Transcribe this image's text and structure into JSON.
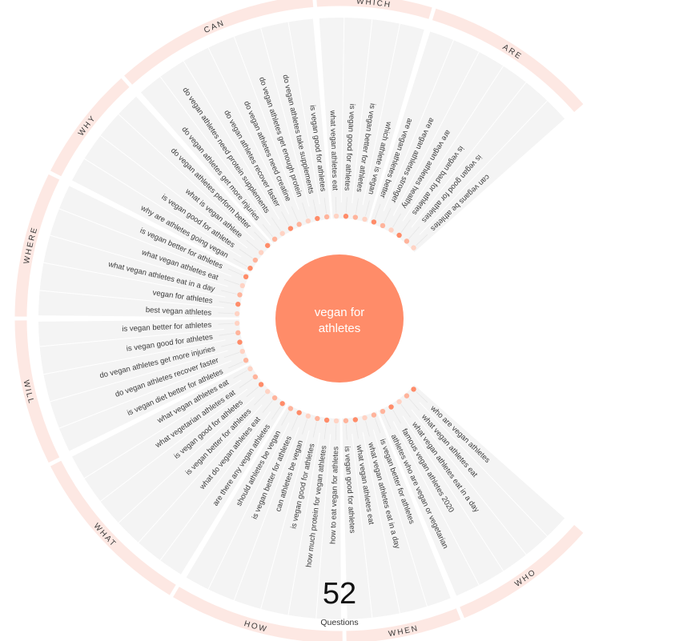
{
  "center_keyword": [
    "vegan for",
    "athletes"
  ],
  "summary": {
    "count": "52",
    "label": "Questions"
  },
  "colors": {
    "accent": "#ff8c69",
    "ring": "#fde8e3",
    "panel": "#f4f4f4"
  },
  "segments": [
    {
      "name": "WHO",
      "questions": [
        "who are vegan athletes",
        "what vegan athletes eat",
        "what vegan athletes eat in a day",
        "famous vegan athletes 2020",
        "athletes who are vegan or vegetarian"
      ]
    },
    {
      "name": "WHEN",
      "questions": [
        "is vegan better for athletes",
        "what vegan athletes eat in a day",
        "what vegan athletes eat",
        "is vegan good for athletes"
      ]
    },
    {
      "name": "HOW",
      "questions": [
        "how to eat vegan for athletes",
        "how much protein for vegan athletes",
        "is vegan good for athletes",
        "can athletes be vegan",
        "is vegan better for athletes",
        "should athletes be vegan"
      ]
    },
    {
      "name": "WHAT",
      "questions": [
        "are there any vegan athletes",
        "what do vegan athletes eat",
        "is vegan better for athletes",
        "is vegan good for athletes",
        "what vegetarian athletes eat",
        "what vegan athletes eat"
      ]
    },
    {
      "name": "WILL",
      "questions": [
        "is vegan diet better for athletes",
        "do vegan athletes recover faster",
        "do vegan athletes get more injuries",
        "is vegan good for athletes",
        "is vegan better for athletes"
      ]
    },
    {
      "name": "WHERE",
      "questions": [
        "best vegan athletes",
        "vegan for athletes",
        "what vegan athletes eat in a day",
        "what vegan athletes eat",
        "is vegan better for athletes"
      ]
    },
    {
      "name": "WHY",
      "questions": [
        "why are athletes going vegan",
        "is vegan good for athletes",
        "what is vegan athlete",
        "do vegan athletes perform better"
      ]
    },
    {
      "name": "CAN",
      "questions": [
        "do vegan athletes get more injuries",
        "do vegan athletes need protein supplements",
        "do vegan athletes recover faster",
        "do vegan athletes need creatine",
        "do vegan athletes get enough protein",
        "do vegan athletes take supplements",
        "is vegan good for athletes"
      ]
    },
    {
      "name": "WHICH",
      "questions": [
        "what vegan athletes eat",
        "is vegan good for athletes",
        "is vegan better for athletes",
        "which athlete is vegan"
      ]
    },
    {
      "name": "ARE",
      "questions": [
        "are vegan athletes better",
        "are vegan athletes stronger",
        "are vegan athletes healthy",
        "is vegan bad for athletes",
        "is vegan good for athletes",
        "can vegans be athletes"
      ]
    }
  ]
}
